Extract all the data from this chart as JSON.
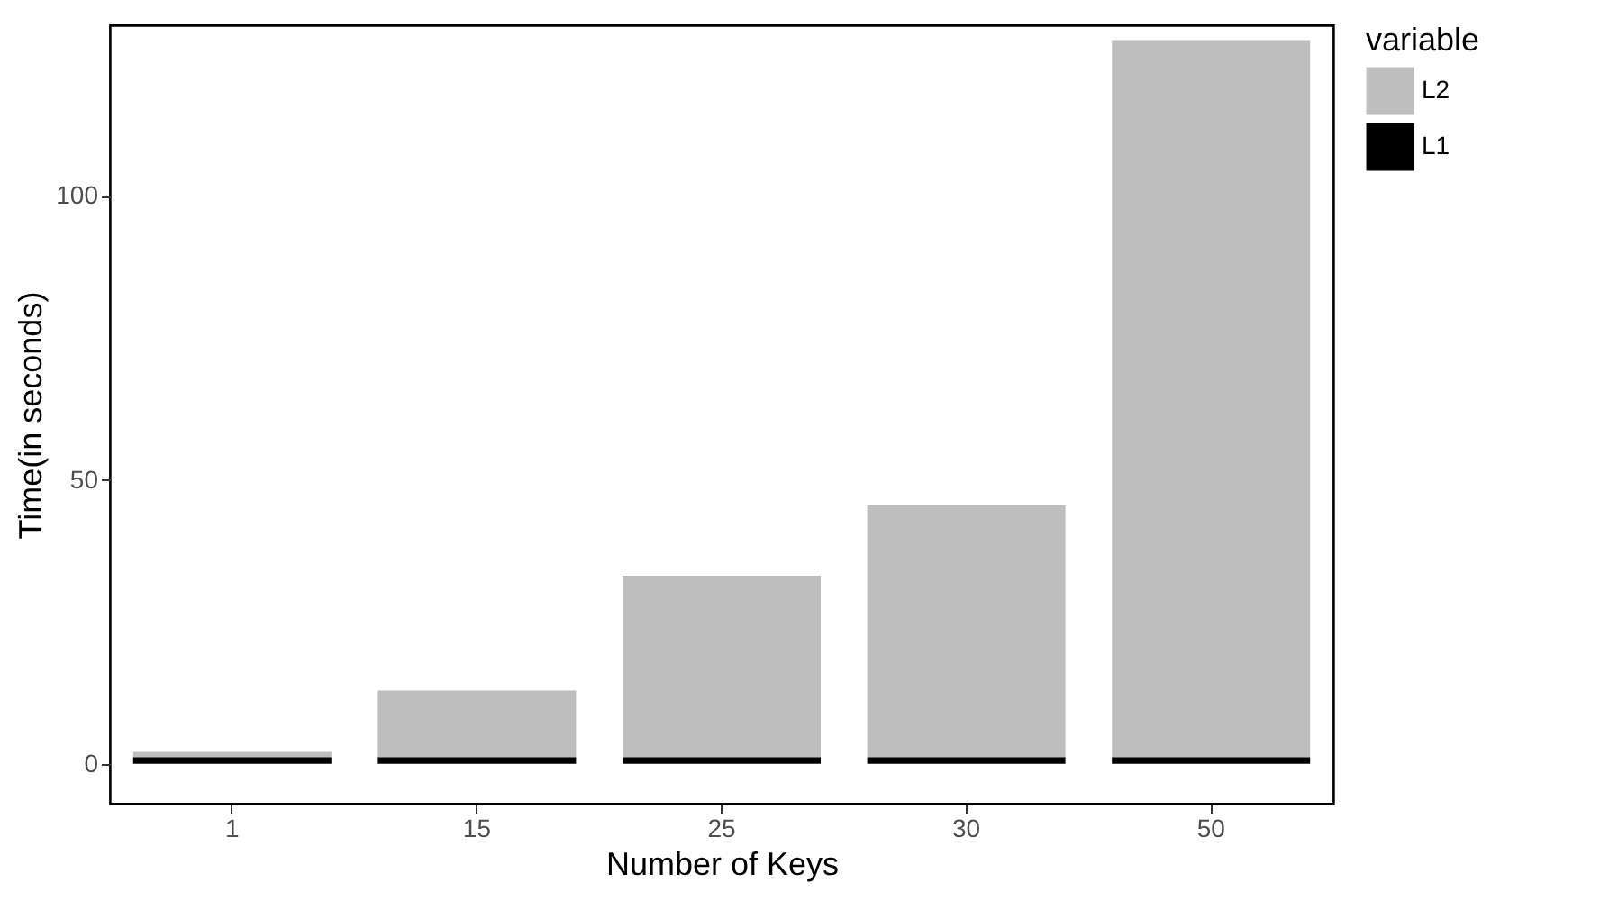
{
  "chart_data": {
    "type": "bar",
    "stacked": true,
    "xlabel": "Number of Keys",
    "ylabel": "Time(in seconds)",
    "legend_title": "variable",
    "legend": "right",
    "categories": [
      "1",
      "15",
      "25",
      "30",
      "50"
    ],
    "series": [
      {
        "name": "L1",
        "color": "#000000",
        "values": [
          1.2,
          1.2,
          1.2,
          1.2,
          1.2
        ]
      },
      {
        "name": "L2",
        "color": "#bebebe",
        "values": [
          0.9,
          11.7,
          31.9,
          44.3,
          126.2
        ]
      }
    ],
    "ylim": [
      -7,
      130
    ],
    "yticks": [
      0,
      50,
      100
    ],
    "grid": false
  }
}
